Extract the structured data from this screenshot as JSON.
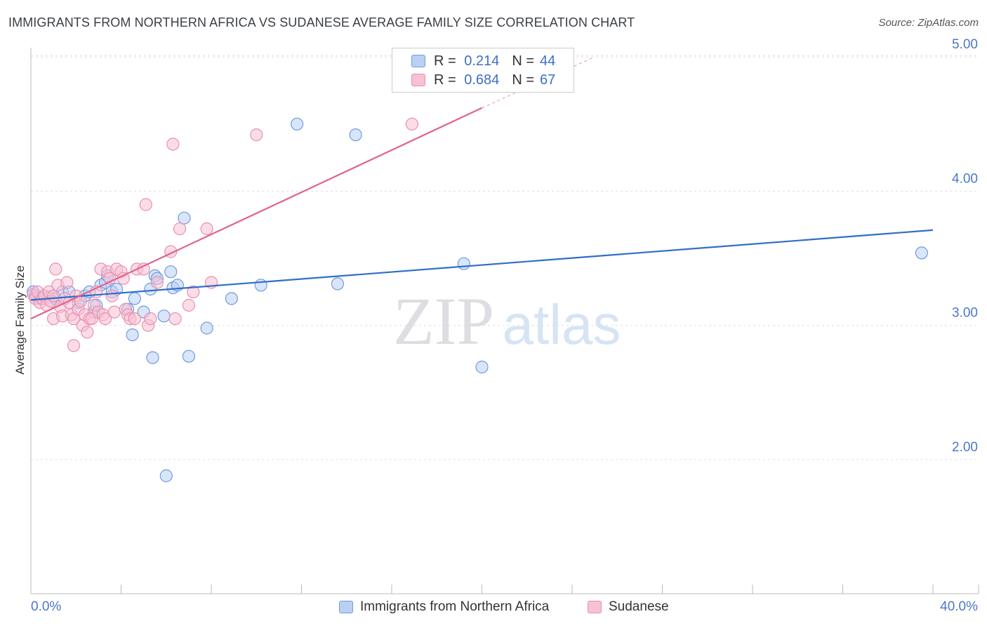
{
  "title": "IMMIGRANTS FROM NORTHERN AFRICA VS SUDANESE AVERAGE FAMILY SIZE CORRELATION CHART",
  "source": "Source: ZipAtlas.com",
  "watermark": {
    "zip": "ZIP",
    "atlas": "atlas"
  },
  "legend": {
    "rows": [
      {
        "r_label": "R =",
        "r_value": "0.214",
        "n_label": "N =",
        "n_value": "44"
      },
      {
        "r_label": "R =",
        "r_value": "0.684",
        "n_label": "N =",
        "n_value": "67"
      }
    ]
  },
  "colors": {
    "blue_fill": "#b9d0f3",
    "blue_stroke": "#6f9ce0",
    "blue_line": "#2f6ecb",
    "pink_fill": "#f7c1d4",
    "pink_stroke": "#ea8fb0",
    "pink_line": "#e0648f",
    "tick": "#4a78c8",
    "grid": "#dddddd"
  },
  "chart_data": {
    "type": "scatter",
    "title": "IMMIGRANTS FROM NORTHERN AFRICA VS SUDANESE AVERAGE FAMILY SIZE CORRELATION CHART",
    "xlabel": "",
    "ylabel": "Average Family Size",
    "xlim": [
      0,
      40
    ],
    "ylim": [
      1.1,
      5.1
    ],
    "x_tick_labels": [
      "0.0%",
      "40.0%"
    ],
    "y_ticks": [
      2.0,
      3.0,
      4.0,
      5.0
    ],
    "y_tick_labels": [
      "2.00",
      "3.00",
      "4.00",
      "5.00"
    ],
    "grid": "horizontal dashed",
    "legend_position": "top-center",
    "series": [
      {
        "name": "Immigrants from Northern Africa",
        "color": "#6f9ce0",
        "trend": {
          "x0": 0,
          "y0": 3.19,
          "x1": 40,
          "y1": 3.71
        },
        "points": [
          [
            0.1,
            3.25
          ],
          [
            0.2,
            3.22
          ],
          [
            0.4,
            3.2
          ],
          [
            0.6,
            3.22
          ],
          [
            0.8,
            3.21
          ],
          [
            1.1,
            3.2
          ],
          [
            1.4,
            3.25
          ],
          [
            1.7,
            3.25
          ],
          [
            2.1,
            3.17
          ],
          [
            2.4,
            3.22
          ],
          [
            2.6,
            3.25
          ],
          [
            2.8,
            3.1
          ],
          [
            2.9,
            3.15
          ],
          [
            3.1,
            3.3
          ],
          [
            3.3,
            3.32
          ],
          [
            3.4,
            3.37
          ],
          [
            3.6,
            3.25
          ],
          [
            3.8,
            3.27
          ],
          [
            4.3,
            3.12
          ],
          [
            4.5,
            2.93
          ],
          [
            4.6,
            3.2
          ],
          [
            5.0,
            3.1
          ],
          [
            5.3,
            3.27
          ],
          [
            5.4,
            2.76
          ],
          [
            5.5,
            3.37
          ],
          [
            5.6,
            3.35
          ],
          [
            5.9,
            3.07
          ],
          [
            6.0,
            1.88
          ],
          [
            6.2,
            3.4
          ],
          [
            6.3,
            3.28
          ],
          [
            6.5,
            3.3
          ],
          [
            6.8,
            3.8
          ],
          [
            7.0,
            2.77
          ],
          [
            7.8,
            2.98
          ],
          [
            8.9,
            3.2
          ],
          [
            10.2,
            3.3
          ],
          [
            11.8,
            4.5
          ],
          [
            13.6,
            3.31
          ],
          [
            14.4,
            4.42
          ],
          [
            19.2,
            3.46
          ],
          [
            20.0,
            2.69
          ],
          [
            39.5,
            3.54
          ]
        ]
      },
      {
        "name": "Sudanese",
        "color": "#ea8fb0",
        "trend": {
          "x0": 0,
          "y0": 3.05,
          "x1": 20,
          "y1": 4.62
        },
        "trend_dashed_to": {
          "x": 25,
          "y": 5.0
        },
        "points": [
          [
            0.1,
            3.23
          ],
          [
            0.2,
            3.2
          ],
          [
            0.3,
            3.25
          ],
          [
            0.4,
            3.17
          ],
          [
            0.5,
            3.2
          ],
          [
            0.6,
            3.22
          ],
          [
            0.7,
            3.15
          ],
          [
            0.8,
            3.25
          ],
          [
            0.9,
            3.18
          ],
          [
            1.0,
            3.05
          ],
          [
            1.0,
            3.22
          ],
          [
            1.1,
            3.42
          ],
          [
            1.2,
            3.3
          ],
          [
            1.3,
            3.14
          ],
          [
            1.4,
            3.07
          ],
          [
            1.5,
            3.2
          ],
          [
            1.6,
            3.32
          ],
          [
            1.7,
            3.17
          ],
          [
            1.8,
            3.08
          ],
          [
            1.9,
            3.05
          ],
          [
            1.9,
            2.85
          ],
          [
            2.0,
            3.22
          ],
          [
            2.1,
            3.12
          ],
          [
            2.2,
            3.18
          ],
          [
            2.3,
            3.0
          ],
          [
            2.4,
            3.08
          ],
          [
            2.5,
            2.95
          ],
          [
            2.6,
            3.05
          ],
          [
            2.7,
            3.05
          ],
          [
            2.8,
            3.15
          ],
          [
            2.9,
            3.25
          ],
          [
            3.0,
            3.1
          ],
          [
            3.1,
            3.42
          ],
          [
            3.2,
            3.08
          ],
          [
            3.3,
            3.05
          ],
          [
            3.4,
            3.4
          ],
          [
            3.5,
            3.35
          ],
          [
            3.6,
            3.22
          ],
          [
            3.7,
            3.1
          ],
          [
            3.8,
            3.42
          ],
          [
            4.0,
            3.4
          ],
          [
            4.1,
            3.35
          ],
          [
            4.2,
            3.12
          ],
          [
            4.3,
            3.08
          ],
          [
            4.4,
            3.05
          ],
          [
            4.6,
            3.05
          ],
          [
            4.7,
            3.42
          ],
          [
            5.0,
            3.42
          ],
          [
            5.1,
            3.9
          ],
          [
            5.2,
            3.0
          ],
          [
            5.3,
            3.05
          ],
          [
            5.6,
            3.32
          ],
          [
            6.2,
            3.55
          ],
          [
            6.3,
            4.35
          ],
          [
            6.4,
            3.05
          ],
          [
            6.6,
            3.72
          ],
          [
            7.0,
            3.15
          ],
          [
            7.2,
            3.25
          ],
          [
            7.8,
            3.72
          ],
          [
            8.0,
            3.32
          ],
          [
            10.0,
            4.42
          ],
          [
            16.9,
            4.5
          ]
        ]
      }
    ]
  }
}
